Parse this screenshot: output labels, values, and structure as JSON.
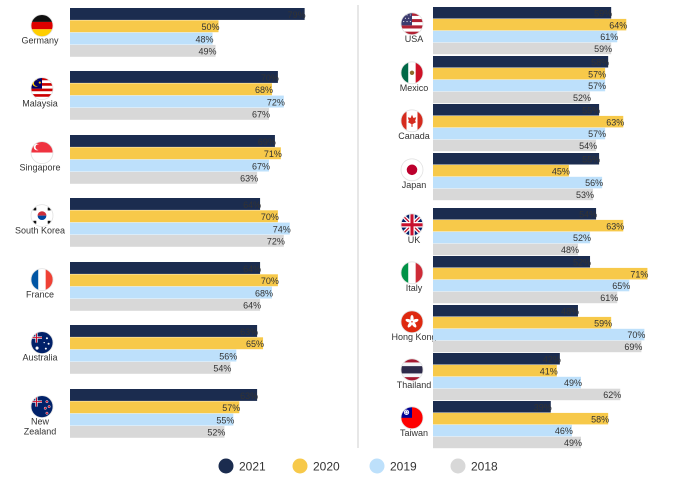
{
  "chart_data": {
    "type": "bar",
    "orientation": "horizontal",
    "unit": "%",
    "xlim": [
      0,
      100
    ],
    "grid": false,
    "legend_position": "bottom",
    "series": [
      {
        "name": "2021",
        "color": "#1b2c4f"
      },
      {
        "name": "2020",
        "color": "#f7c94a"
      },
      {
        "name": "2019",
        "color": "#bde0fb"
      },
      {
        "name": "2018",
        "color": "#d8d8d8"
      }
    ],
    "panels": [
      {
        "name": "left",
        "countries": [
          {
            "label": "Germany",
            "flag": "germany-flag",
            "values": [
              79,
              50,
              48,
              49
            ]
          },
          {
            "label": "Malaysia",
            "flag": "malaysia-flag",
            "values": [
              70,
              68,
              72,
              67
            ]
          },
          {
            "label": "Singapore",
            "flag": "singapore-flag",
            "values": [
              69,
              71,
              67,
              63
            ]
          },
          {
            "label": "South Korea",
            "flag": "south-korea-flag",
            "values": [
              64,
              70,
              74,
              72
            ]
          },
          {
            "label": "France",
            "flag": "france-flag",
            "values": [
              64,
              70,
              68,
              64
            ]
          },
          {
            "label": "Australia",
            "flag": "australia-flag",
            "values": [
              63,
              65,
              56,
              54
            ]
          },
          {
            "label": "New Zealand",
            "flag": "new-zealand-flag",
            "values": [
              63,
              57,
              55,
              52
            ]
          }
        ]
      },
      {
        "name": "right",
        "countries": [
          {
            "label": "USA",
            "flag": "usa-flag",
            "values": [
              59,
              64,
              61,
              59
            ]
          },
          {
            "label": "Mexico",
            "flag": "mexico-flag",
            "values": [
              58,
              57,
              57,
              52
            ]
          },
          {
            "label": "Canada",
            "flag": "canada-flag",
            "values": [
              55,
              63,
              57,
              54
            ]
          },
          {
            "label": "Japan",
            "flag": "japan-flag",
            "values": [
              55,
              45,
              56,
              53
            ]
          },
          {
            "label": "UK",
            "flag": "uk-flag",
            "values": [
              54,
              63,
              52,
              48
            ]
          },
          {
            "label": "Italy",
            "flag": "italy-flag",
            "values": [
              52,
              71,
              65,
              61
            ]
          },
          {
            "label": "Hong Kong",
            "flag": "hong-kong-flag",
            "values": [
              48,
              59,
              70,
              69
            ]
          },
          {
            "label": "Thailand",
            "flag": "thailand-flag",
            "values": [
              42,
              41,
              49,
              62
            ]
          },
          {
            "label": "Taiwan",
            "flag": "taiwan-flag",
            "values": [
              39,
              58,
              46,
              49
            ]
          }
        ]
      }
    ]
  }
}
